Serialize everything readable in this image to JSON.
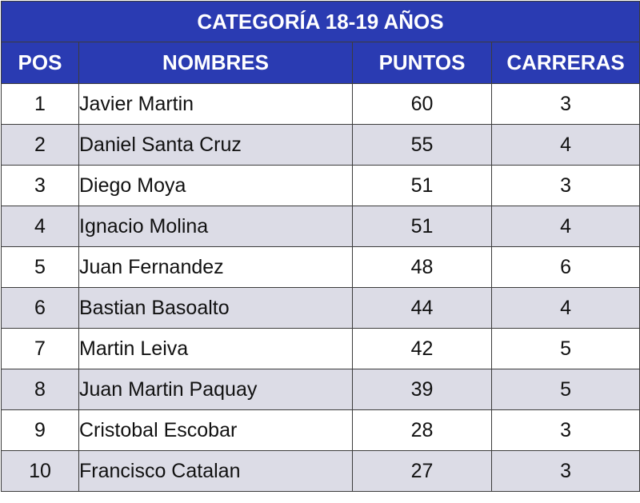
{
  "title": "CATEGORÍA 18-19 AÑOS",
  "columns": {
    "pos": "POS",
    "nombres": "NOMBRES",
    "puntos": "PUNTOS",
    "carreras": "CARRERAS"
  },
  "rows": [
    {
      "pos": "1",
      "nombre": "Javier Martin",
      "puntos": "60",
      "carreras": "3"
    },
    {
      "pos": "2",
      "nombre": "Daniel Santa Cruz",
      "puntos": "55",
      "carreras": "4"
    },
    {
      "pos": "3",
      "nombre": "Diego Moya",
      "puntos": "51",
      "carreras": "3"
    },
    {
      "pos": "4",
      "nombre": "Ignacio Molina",
      "puntos": "51",
      "carreras": "4"
    },
    {
      "pos": "5",
      "nombre": "Juan Fernandez",
      "puntos": "48",
      "carreras": "6"
    },
    {
      "pos": "6",
      "nombre": "Bastian Basoalto",
      "puntos": "44",
      "carreras": "4"
    },
    {
      "pos": "7",
      "nombre": "Martin Leiva",
      "puntos": "42",
      "carreras": "5"
    },
    {
      "pos": "8",
      "nombre": "Juan Martin Paquay",
      "puntos": "39",
      "carreras": "5"
    },
    {
      "pos": "9",
      "nombre": "Cristobal Escobar",
      "puntos": "28",
      "carreras": "3"
    },
    {
      "pos": "10",
      "nombre": "Francisco Catalan",
      "puntos": "27",
      "carreras": "3"
    }
  ],
  "colors": {
    "header_bg": "#2a3bb2",
    "header_text": "#ffffff",
    "row_alt_bg": "#dcdce6",
    "border": "#3c3c3c"
  }
}
